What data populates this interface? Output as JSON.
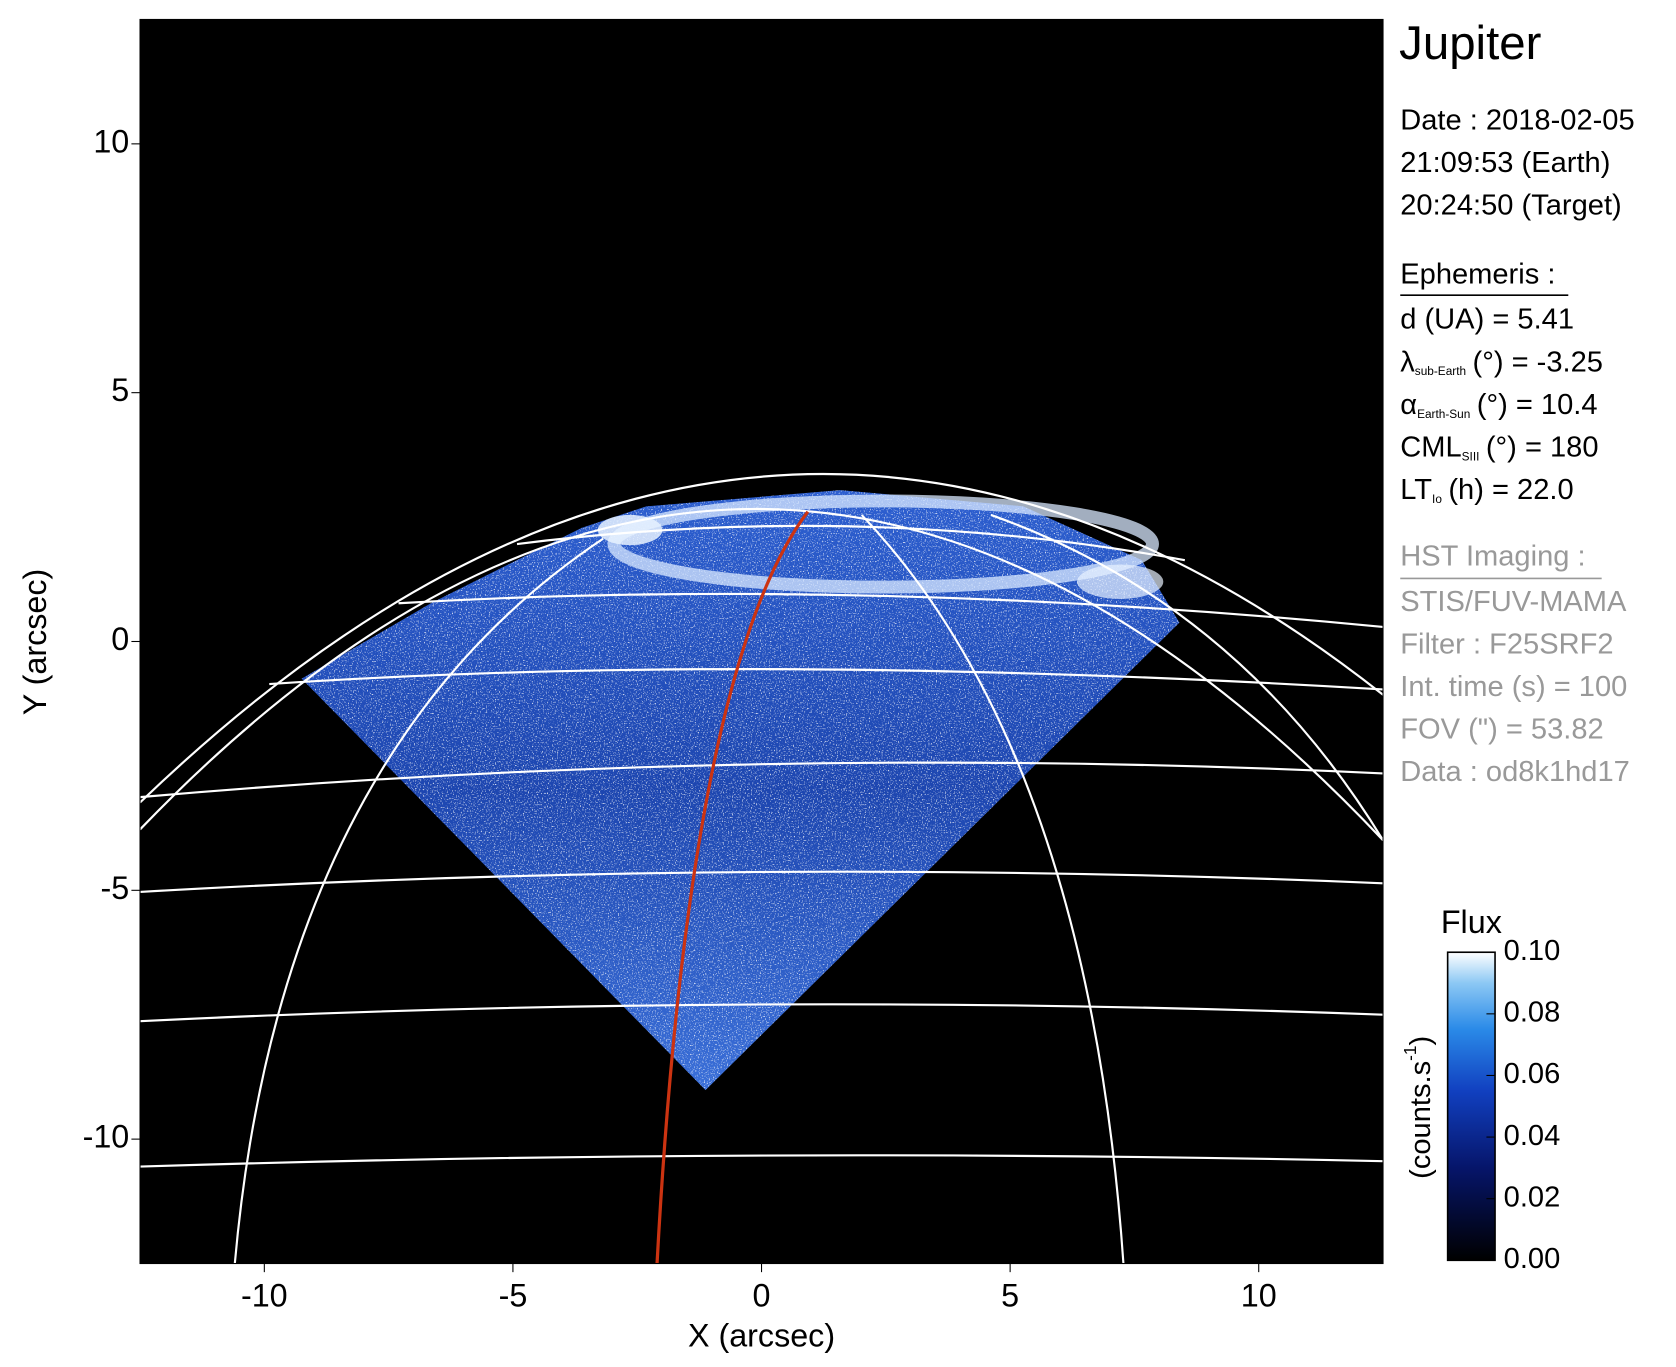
{
  "chart_data": {
    "type": "image",
    "xlabel": "X (arcsec)",
    "ylabel": "Y (arcsec)",
    "xlim": [
      -12.5,
      12.5
    ],
    "ylim": [
      -12.5,
      12.5
    ],
    "xticks": [
      -10,
      -5,
      0,
      5,
      10
    ],
    "yticks": [
      -10,
      -5,
      0,
      5,
      10
    ],
    "colorbar": {
      "title": "Flux",
      "label": "(counts.s",
      "label_sup": "-1",
      "label_end": ")",
      "lim": [
        0,
        0.1
      ],
      "ticks": [
        {
          "value": 0,
          "label": "0.00"
        },
        {
          "value": 0.02,
          "label": "0.02"
        },
        {
          "value": 0.04,
          "label": "0.04"
        },
        {
          "value": 0.06,
          "label": "0.06"
        },
        {
          "value": 0.08,
          "label": "0.08"
        },
        {
          "value": 0.1,
          "label": "0.10"
        }
      ]
    }
  },
  "info": {
    "title": "Jupiter",
    "date": [
      "Date : 2018-02-05",
      "21:09:53 (Earth)",
      "20:24:50 (Target)"
    ],
    "ephemeris": {
      "heading": "Ephemeris :",
      "rows": [
        {
          "text": "d (UA)    = 5.41"
        },
        {
          "symbol": "λ",
          "sub": "sub-Earth",
          "rest": "(°) = -3.25"
        },
        {
          "symbol": "α",
          "sub": "Earth-Sun",
          "rest": "(°) = 10.4"
        },
        {
          "symbol": "CML",
          "sub": "SIII",
          "rest": "(°) = 180"
        },
        {
          "symbol": "LT",
          "sub": "Io",
          "rest": "(h) = 22.0"
        }
      ]
    },
    "imaging": {
      "heading": "HST Imaging :",
      "lines": [
        "STIS/FUV-MAMA",
        "Filter : F25SRF2",
        "Int. time (s) = 100",
        "FOV (\") = 53.82",
        "Data : od8k1hd17"
      ]
    }
  }
}
